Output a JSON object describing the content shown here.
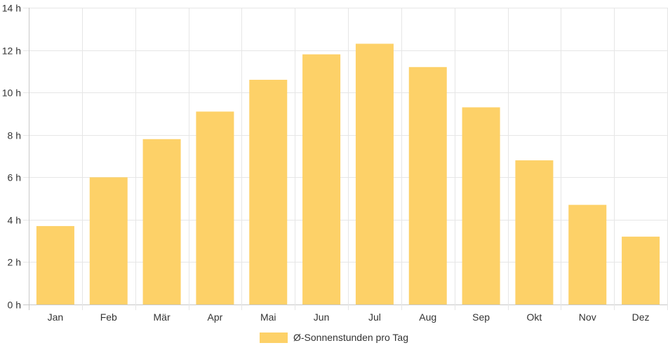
{
  "chart_data": {
    "type": "bar",
    "categories": [
      "Jan",
      "Feb",
      "Mär",
      "Apr",
      "Mai",
      "Jun",
      "Jul",
      "Aug",
      "Sep",
      "Okt",
      "Nov",
      "Dez"
    ],
    "series": [
      {
        "name": "Ø-Sonnenstunden pro Tag",
        "values": [
          3.7,
          6.0,
          7.8,
          9.1,
          10.6,
          11.8,
          12.3,
          11.2,
          9.3,
          6.8,
          4.7,
          3.2
        ],
        "color": "#FDD168"
      }
    ],
    "y_ticks": [
      "0 h",
      "2 h",
      "4 h",
      "6 h",
      "8 h",
      "10 h",
      "12 h",
      "14 h"
    ],
    "ylim": [
      0,
      14
    ],
    "grid": true,
    "legend_position": "bottom",
    "title": "",
    "xlabel": "",
    "ylabel": ""
  }
}
